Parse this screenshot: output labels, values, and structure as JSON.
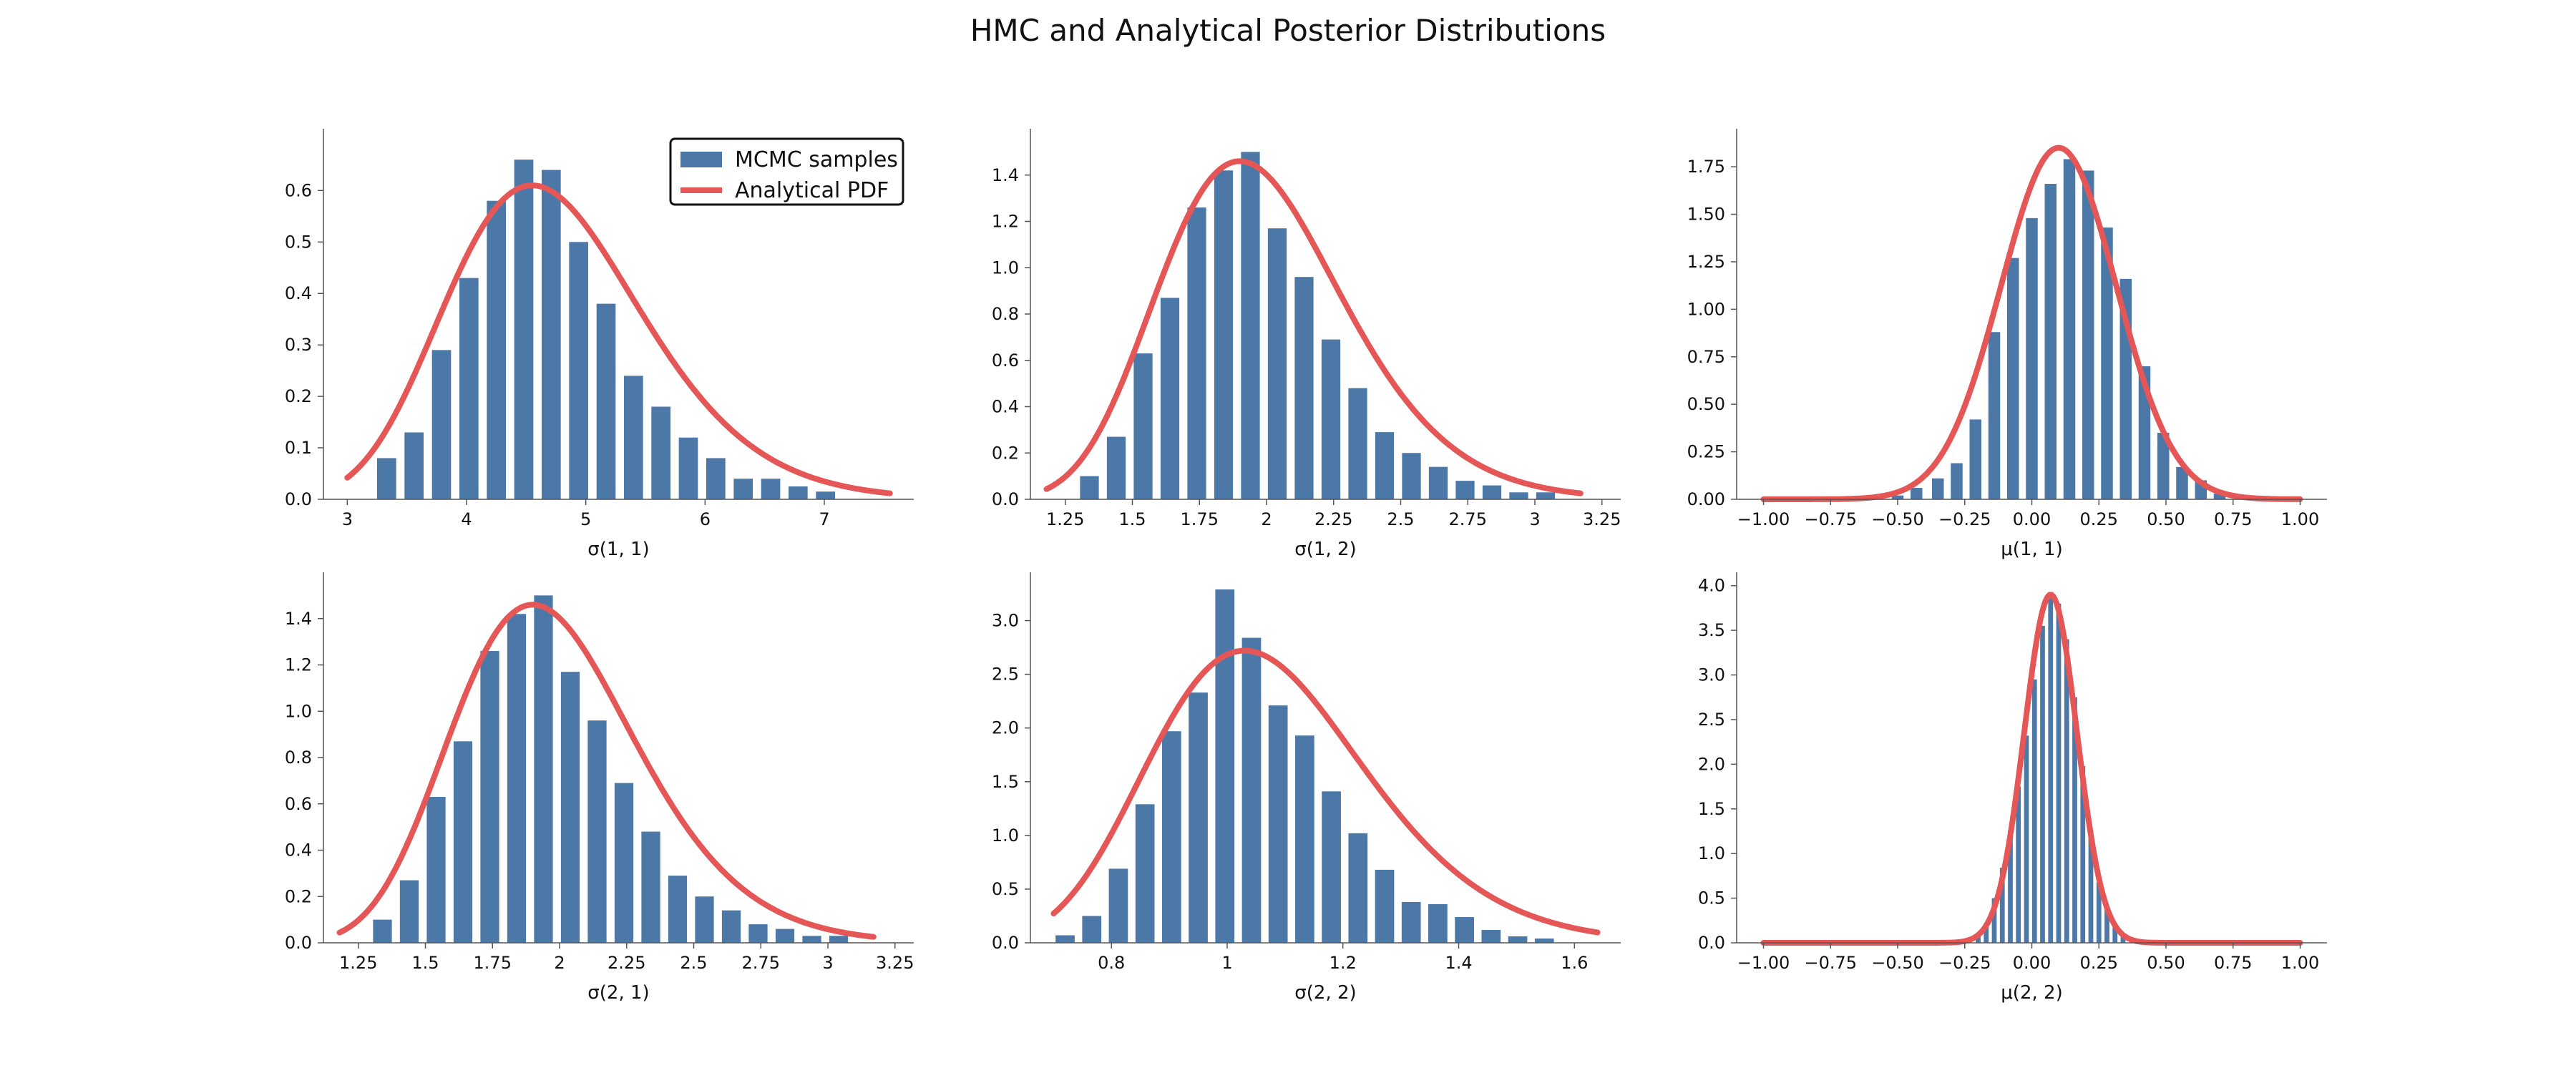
{
  "figure": {
    "title": "HMC and Analytical Posterior Distributions"
  },
  "style": {
    "bar_color": "#4c78a8",
    "curve_color": "#e45756",
    "axis_color": "#555555"
  },
  "legend": {
    "location": "upper-right of first panel",
    "entries": [
      {
        "label": "MCMC samples",
        "kind": "bar",
        "color": "#4c78a8"
      },
      {
        "label": "Analytical PDF",
        "kind": "line",
        "color": "#e45756"
      }
    ]
  },
  "chart_data": [
    {
      "type": "bar",
      "xlabel": "σ(1, 1)",
      "xlim": [
        2.8,
        7.75
      ],
      "ylim": [
        0,
        0.72
      ],
      "xticks": [
        3,
        4,
        5,
        6,
        7
      ],
      "yticks": [
        0.0,
        0.1,
        0.2,
        0.3,
        0.4,
        0.5,
        0.6
      ],
      "ytick_labels": [
        "0.0",
        "0.1",
        "0.2",
        "0.3",
        "0.4",
        "0.5",
        "0.6"
      ],
      "bar_width": 0.16,
      "x": [
        3.33,
        3.56,
        3.79,
        4.02,
        4.25,
        4.48,
        4.71,
        4.94,
        5.17,
        5.4,
        5.63,
        5.86,
        6.09,
        6.32,
        6.55,
        6.78,
        7.01
      ],
      "values": [
        0.08,
        0.13,
        0.29,
        0.43,
        0.58,
        0.66,
        0.64,
        0.5,
        0.38,
        0.24,
        0.18,
        0.12,
        0.08,
        0.04,
        0.04,
        0.025,
        0.015
      ],
      "curve": {
        "kind": "lognormal",
        "mode": 4.55,
        "peak": 0.61,
        "xmin": 3.0,
        "xmax": 7.55
      }
    },
    {
      "type": "bar",
      "xlabel": "σ(1, 2)",
      "xlim": [
        1.12,
        3.32
      ],
      "ylim": [
        0,
        1.6
      ],
      "xticks": [
        1.25,
        1.5,
        1.75,
        2.0,
        2.25,
        2.5,
        2.75,
        3.0,
        3.25
      ],
      "yticks": [
        0.0,
        0.2,
        0.4,
        0.6,
        0.8,
        1.0,
        1.2,
        1.4
      ],
      "ytick_labels": [
        "0.0",
        "0.2",
        "0.4",
        "0.6",
        "0.8",
        "1.0",
        "1.2",
        "1.4"
      ],
      "bar_width": 0.07,
      "x": [
        1.34,
        1.44,
        1.54,
        1.64,
        1.74,
        1.84,
        1.94,
        2.04,
        2.14,
        2.24,
        2.34,
        2.44,
        2.54,
        2.64,
        2.74,
        2.84,
        2.94,
        3.04
      ],
      "values": [
        0.1,
        0.27,
        0.63,
        0.87,
        1.26,
        1.42,
        1.5,
        1.17,
        0.96,
        0.69,
        0.48,
        0.29,
        0.2,
        0.14,
        0.08,
        0.06,
        0.03,
        0.03
      ],
      "curve": {
        "kind": "lognormal",
        "mode": 1.9,
        "peak": 1.46,
        "xmin": 1.18,
        "xmax": 3.17
      }
    },
    {
      "type": "bar",
      "xlabel": "μ(1, 1)",
      "xlim": [
        -1.1,
        1.1
      ],
      "ylim": [
        0,
        1.95
      ],
      "xticks": [
        -1.0,
        -0.75,
        -0.5,
        -0.25,
        0.0,
        0.25,
        0.5,
        0.75,
        1.0
      ],
      "xtick_labels": [
        "−1.00",
        "−0.75",
        "−0.50",
        "−0.25",
        "0.00",
        "0.25",
        "0.50",
        "0.75",
        "1.00"
      ],
      "yticks": [
        0.0,
        0.25,
        0.5,
        0.75,
        1.0,
        1.25,
        1.5,
        1.75
      ],
      "ytick_labels": [
        "0.00",
        "0.25",
        "0.50",
        "0.75",
        "1.00",
        "1.25",
        "1.50",
        "1.75"
      ],
      "bar_width": 0.044,
      "x": [
        -0.5,
        -0.43,
        -0.35,
        -0.28,
        -0.21,
        -0.14,
        -0.07,
        0.0,
        0.07,
        0.14,
        0.21,
        0.28,
        0.35,
        0.42,
        0.49,
        0.56,
        0.63,
        0.7
      ],
      "values": [
        0.02,
        0.06,
        0.11,
        0.19,
        0.42,
        0.88,
        1.27,
        1.48,
        1.66,
        1.79,
        1.73,
        1.43,
        1.16,
        0.7,
        0.35,
        0.17,
        0.1,
        0.03
      ],
      "curve": {
        "kind": "normal",
        "mean": 0.1,
        "sd": 0.215,
        "peak": 1.85,
        "xmin": -1.0,
        "xmax": 1.0
      }
    },
    {
      "type": "bar",
      "xlabel": "σ(2, 1)",
      "xlim": [
        1.12,
        3.32
      ],
      "ylim": [
        0,
        1.6
      ],
      "xticks": [
        1.25,
        1.5,
        1.75,
        2.0,
        2.25,
        2.5,
        2.75,
        3.0,
        3.25
      ],
      "yticks": [
        0.0,
        0.2,
        0.4,
        0.6,
        0.8,
        1.0,
        1.2,
        1.4
      ],
      "ytick_labels": [
        "0.0",
        "0.2",
        "0.4",
        "0.6",
        "0.8",
        "1.0",
        "1.2",
        "1.4"
      ],
      "bar_width": 0.07,
      "x": [
        1.34,
        1.44,
        1.54,
        1.64,
        1.74,
        1.84,
        1.94,
        2.04,
        2.14,
        2.24,
        2.34,
        2.44,
        2.54,
        2.64,
        2.74,
        2.84,
        2.94,
        3.04
      ],
      "values": [
        0.1,
        0.27,
        0.63,
        0.87,
        1.26,
        1.42,
        1.5,
        1.17,
        0.96,
        0.69,
        0.48,
        0.29,
        0.2,
        0.14,
        0.08,
        0.06,
        0.03,
        0.03
      ],
      "curve": {
        "kind": "lognormal",
        "mode": 1.9,
        "peak": 1.46,
        "xmin": 1.18,
        "xmax": 3.17
      }
    },
    {
      "type": "bar",
      "xlabel": "σ(2, 2)",
      "xlim": [
        0.66,
        1.68
      ],
      "ylim": [
        0,
        3.45
      ],
      "xticks": [
        0.8,
        1.0,
        1.2,
        1.4,
        1.6
      ],
      "yticks": [
        0.0,
        0.5,
        1.0,
        1.5,
        2.0,
        2.5,
        3.0
      ],
      "ytick_labels": [
        "0.0",
        "0.5",
        "1.0",
        "1.5",
        "2.0",
        "2.5",
        "3.0"
      ],
      "bar_width": 0.033,
      "x": [
        0.72,
        0.766,
        0.812,
        0.858,
        0.904,
        0.95,
        0.996,
        1.042,
        1.088,
        1.134,
        1.18,
        1.226,
        1.272,
        1.318,
        1.364,
        1.41,
        1.456,
        1.502,
        1.548
      ],
      "values": [
        0.07,
        0.25,
        0.69,
        1.29,
        1.97,
        2.33,
        3.29,
        2.84,
        2.21,
        1.93,
        1.41,
        1.02,
        0.68,
        0.38,
        0.36,
        0.24,
        0.12,
        0.06,
        0.04
      ],
      "curve": {
        "kind": "lognormal",
        "mode": 1.03,
        "peak": 2.72,
        "xmin": 0.7,
        "xmax": 1.64
      }
    },
    {
      "type": "bar",
      "xlabel": "μ(2, 2)",
      "xlim": [
        -1.1,
        1.1
      ],
      "ylim": [
        0,
        4.15
      ],
      "xticks": [
        -1.0,
        -0.75,
        -0.5,
        -0.25,
        0.0,
        0.25,
        0.5,
        0.75,
        1.0
      ],
      "xtick_labels": [
        "−1.00",
        "−0.75",
        "−0.50",
        "−0.25",
        "0.00",
        "0.25",
        "0.50",
        "0.75",
        "1.00"
      ],
      "yticks": [
        0.0,
        0.5,
        1.0,
        1.5,
        2.0,
        2.5,
        3.0,
        3.5,
        4.0
      ],
      "ytick_labels": [
        "0.0",
        "0.5",
        "1.0",
        "1.5",
        "2.0",
        "2.5",
        "3.0",
        "3.5",
        "4.0"
      ],
      "bar_width": 0.018,
      "x": [
        -0.2,
        -0.17,
        -0.14,
        -0.11,
        -0.08,
        -0.05,
        -0.02,
        0.01,
        0.04,
        0.07,
        0.1,
        0.13,
        0.16,
        0.19,
        0.22,
        0.25,
        0.28,
        0.31,
        0.34
      ],
      "values": [
        0.08,
        0.22,
        0.5,
        0.84,
        1.26,
        1.75,
        2.32,
        2.95,
        3.55,
        3.93,
        3.8,
        3.4,
        2.75,
        1.98,
        1.26,
        0.68,
        0.38,
        0.18,
        0.08
      ],
      "curve": {
        "kind": "normal",
        "mean": 0.07,
        "sd": 0.098,
        "peak": 3.9,
        "xmin": -1.0,
        "xmax": 1.0
      }
    }
  ]
}
